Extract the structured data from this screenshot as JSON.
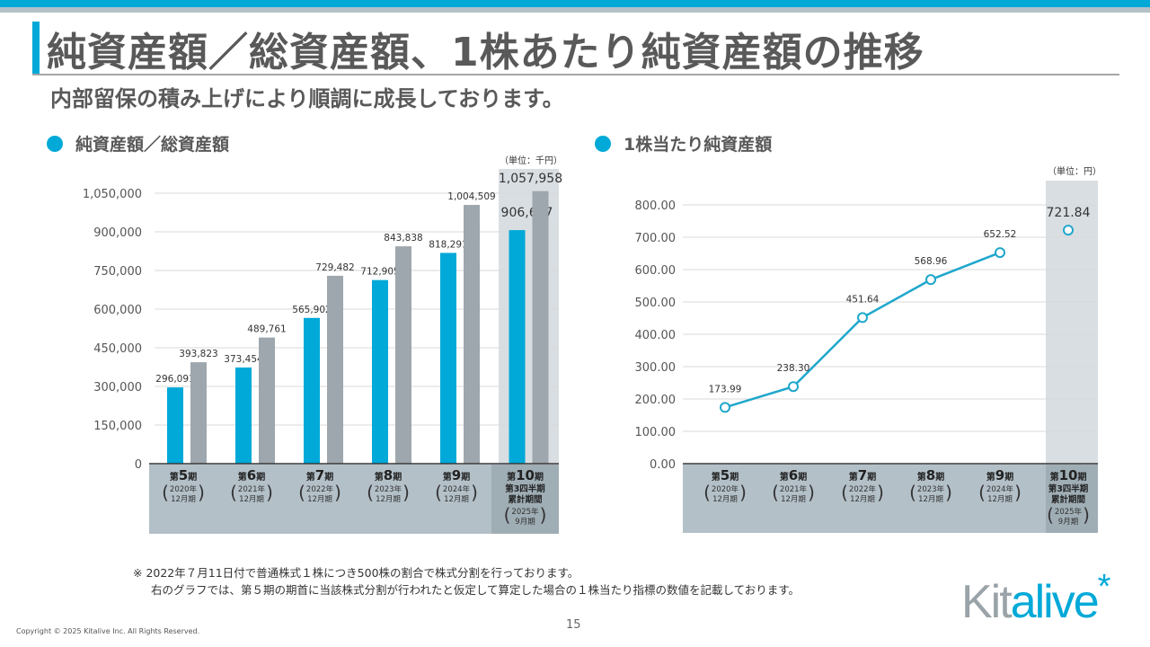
{
  "header": {
    "title": "純資産額／総資産額、1株あたり純資産額の推移",
    "subtitle": "内部留保の積み上げにより順調に成長しております。"
  },
  "colors": {
    "accent": "#00a9d8",
    "gray_bar": "#9ea7ad",
    "category_band": "#b3c0c8",
    "highlight_band": "#d9dee2",
    "highlight_category": "#9fadb5"
  },
  "chart_data": [
    {
      "type": "bar",
      "title": "純資産額／総資産額",
      "unit_label": "（単位：千円）",
      "categories": [
        {
          "period": "第5期",
          "num": "5",
          "lines": [
            "2020年",
            "12月期"
          ]
        },
        {
          "period": "第6期",
          "num": "6",
          "lines": [
            "2021年",
            "12月期"
          ]
        },
        {
          "period": "第7期",
          "num": "7",
          "lines": [
            "2022年",
            "12月期"
          ]
        },
        {
          "period": "第8期",
          "num": "8",
          "lines": [
            "2023年",
            "12月期"
          ]
        },
        {
          "period": "第9期",
          "num": "9",
          "lines": [
            "2024年",
            "12月期"
          ]
        },
        {
          "period": "第10期",
          "num": "10",
          "extra": [
            "第3四半期",
            "累計期間"
          ],
          "lines": [
            "2025年",
            "9月期"
          ],
          "highlight": true
        }
      ],
      "series": [
        {
          "name": "純資産額",
          "color": "#00a9d8",
          "values": [
            296091,
            373454,
            565902,
            712905,
            818291,
            906667
          ],
          "labels": [
            "296,091",
            "373,454",
            "565,902",
            "712,905",
            "818,291",
            "906,667"
          ]
        },
        {
          "name": "総資産額",
          "color": "#9ea7ad",
          "values": [
            393823,
            489761,
            729482,
            843838,
            1004509,
            1057958
          ],
          "labels": [
            "393,823",
            "489,761",
            "729,482",
            "843,838",
            "1,004,509",
            "1,057,958"
          ]
        }
      ],
      "ylim": [
        0,
        1050000
      ],
      "yticks": [
        0,
        150000,
        300000,
        450000,
        600000,
        750000,
        900000,
        1050000
      ],
      "ytick_labels": [
        "0",
        "150,000",
        "300,000",
        "450,000",
        "600,000",
        "750,000",
        "900,000",
        "1,050,000"
      ],
      "grid": true,
      "legend": "none"
    },
    {
      "type": "line",
      "title": "1株当たり純資産額",
      "unit_label": "（単位：円）",
      "categories": [
        {
          "period": "第5期",
          "num": "5",
          "lines": [
            "2020年",
            "12月期"
          ]
        },
        {
          "period": "第6期",
          "num": "6",
          "lines": [
            "2021年",
            "12月期"
          ]
        },
        {
          "period": "第7期",
          "num": "7",
          "lines": [
            "2022年",
            "12月期"
          ]
        },
        {
          "period": "第8期",
          "num": "8",
          "lines": [
            "2023年",
            "12月期"
          ]
        },
        {
          "period": "第9期",
          "num": "9",
          "lines": [
            "2024年",
            "12月期"
          ]
        },
        {
          "period": "第10期",
          "num": "10",
          "extra": [
            "第3四半期",
            "累計期間"
          ],
          "lines": [
            "2025年",
            "9月期"
          ],
          "highlight": true
        }
      ],
      "series": [
        {
          "name": "1株当たり純資産額",
          "color": "#1fa7cc",
          "values": [
            173.99,
            238.3,
            451.64,
            568.96,
            652.52,
            721.84
          ],
          "labels": [
            "173.99",
            "238.30",
            "451.64",
            "568.96",
            "652.52",
            "721.84"
          ],
          "connected_count": 5
        }
      ],
      "ylim": [
        0,
        800
      ],
      "yticks": [
        0,
        100,
        200,
        300,
        400,
        500,
        600,
        700,
        800
      ],
      "ytick_labels": [
        "0.00",
        "100.00",
        "200.00",
        "300.00",
        "400.00",
        "500.00",
        "600.00",
        "700.00",
        "800.00"
      ],
      "grid": true,
      "legend": "none"
    }
  ],
  "footnote": {
    "line1": "※ 2022年７月11日付で普通株式１株につき500株の割合で株式分割を行っております。",
    "line2": "右のグラフでは、第５期の期首に当該株式分割が行われたと仮定して算定した場合の１株当たり指標の数値を記載しております。"
  },
  "footer": {
    "copyright": "Copyright © 2025 Kitalive Inc. All Rights Reserved.",
    "page": "15",
    "logo_kit": "Kit",
    "logo_alive": "alive",
    "logo_star": "*"
  }
}
